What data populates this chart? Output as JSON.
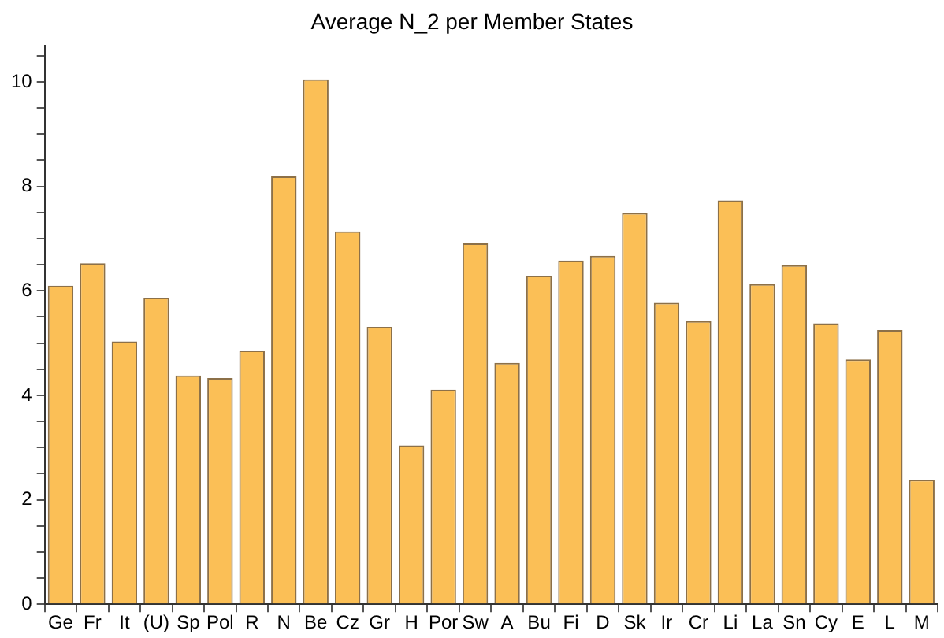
{
  "chart_data": {
    "type": "bar",
    "title": "Average N_2 per Member States",
    "categories": [
      "Ge",
      "Fr",
      "It",
      "(U)",
      "Sp",
      "Pol",
      "R",
      "N",
      "Be",
      "Cz",
      "Gr",
      "H",
      "Por",
      "Sw",
      "A",
      "Bu",
      "Fi",
      "D",
      "Sk",
      "Ir",
      "Cr",
      "Li",
      "La",
      "Sn",
      "Cy",
      "E",
      "L",
      "M"
    ],
    "values": [
      6.1,
      6.53,
      5.03,
      5.87,
      4.38,
      4.33,
      4.86,
      8.19,
      10.05,
      7.14,
      5.31,
      3.04,
      4.11,
      6.91,
      4.62,
      6.29,
      6.58,
      6.67,
      7.49,
      5.77,
      5.42,
      7.73,
      6.13,
      6.49,
      5.38,
      4.69,
      5.25,
      2.38
    ],
    "color": "#fbbf56",
    "ylim": [
      0,
      10.7
    ],
    "yticks": [
      0,
      {
        "value": 0.5,
        "label": null
      },
      2,
      {
        "value": 1,
        "label": null
      },
      {
        "value": 1.5,
        "label": null
      },
      {
        "value": 2.5,
        "label": null
      },
      {
        "value": 3,
        "label": null
      },
      {
        "value": 3.5,
        "label": null
      },
      4,
      {
        "value": 4.5,
        "label": null
      },
      {
        "value": 5,
        "label": null
      },
      {
        "value": 5.5,
        "label": null
      },
      6,
      {
        "value": 6.5,
        "label": null
      },
      {
        "value": 7,
        "label": null
      },
      {
        "value": 7.5,
        "label": null
      },
      8,
      {
        "value": 8.5,
        "label": null
      },
      {
        "value": 9,
        "label": null
      },
      {
        "value": 9.5,
        "label": null
      },
      10,
      {
        "value": 10.5,
        "label": null
      }
    ],
    "grid": false,
    "legend": false
  }
}
